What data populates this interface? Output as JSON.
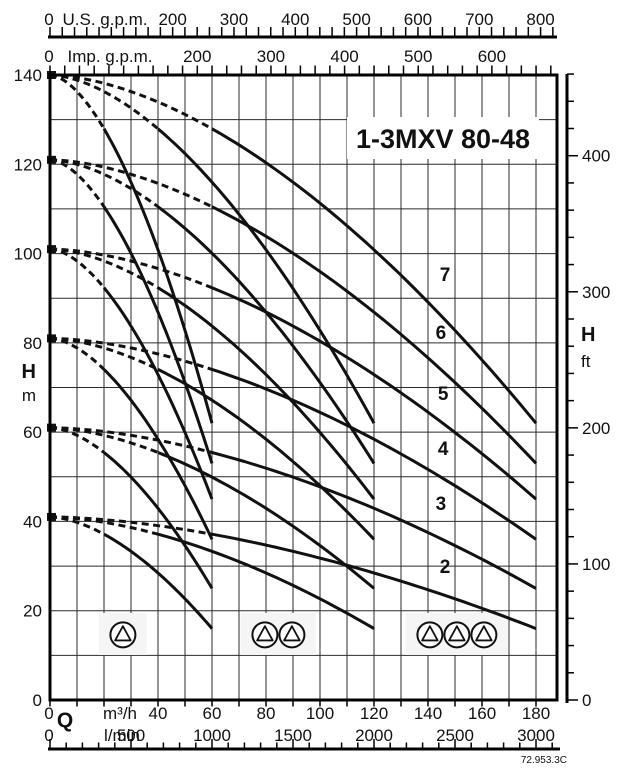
{
  "title": "1-3MXV 80-48",
  "drawing_code": "72.953.3C",
  "axes": {
    "us_gpm": {
      "zero": "0",
      "name": "U.S. g.p.m.",
      "labels": [
        200,
        300,
        400,
        500,
        600,
        700,
        800
      ],
      "minor_step_gpm": 20,
      "max_gpm": 820
    },
    "imp_gpm": {
      "zero": "0",
      "name": "Imp. g.p.m.",
      "labels": [
        200,
        300,
        400,
        500,
        600
      ],
      "minor_step_gpm": 20,
      "max_gpm": 680
    },
    "head_left": {
      "symbol": "H",
      "unit": "m",
      "labels": [
        140,
        120,
        100,
        80,
        60,
        40,
        20,
        0
      ],
      "grid_step_m": 10
    },
    "head_right": {
      "symbol": "H",
      "unit": "ft",
      "labels": [
        400,
        300,
        200,
        100,
        0
      ],
      "minor_step_ft": 20,
      "max_ft": 460
    },
    "flow_m3h": {
      "zero": "0",
      "symbol": "Q",
      "unit": "m³/h",
      "labels": [
        40,
        60,
        80,
        100,
        120,
        140,
        160,
        180
      ],
      "tick_step_m3h": 10
    },
    "flow_lmin": {
      "zero": "0",
      "unit": "l/min",
      "labels": [
        500,
        1000,
        1500,
        2000,
        2500,
        3000
      ],
      "minor_step_lmin": 100,
      "max_lmin": 3100
    }
  },
  "chart_data": {
    "type": "line",
    "title": "1-3MXV 80-48",
    "xlabel": "Q m³/h",
    "ylabel": "H m",
    "x_range_m3h": [
      0,
      187
    ],
    "y_range_m": [
      0,
      140
    ],
    "grid": "on",
    "curve_families": [
      {
        "label": "7",
        "shutoff_head_m": 140,
        "head_at_full_flow_m": 62,
        "label_q_h": [
          146.3,
          95.2
        ]
      },
      {
        "label": "6",
        "shutoff_head_m": 121,
        "head_at_full_flow_m": 53,
        "label_q_h": [
          144.8,
          82.2
        ]
      },
      {
        "label": "5",
        "shutoff_head_m": 101,
        "head_at_full_flow_m": 45,
        "label_q_h": [
          145.6,
          68.5
        ]
      },
      {
        "label": "4",
        "shutoff_head_m": 81,
        "head_at_full_flow_m": 36,
        "label_q_h": [
          145.6,
          56.2
        ]
      },
      {
        "label": "3",
        "shutoff_head_m": 61,
        "head_at_full_flow_m": 25,
        "label_q_h": [
          144.8,
          43.9
        ]
      },
      {
        "label": "2",
        "shutoff_head_m": 41,
        "head_at_full_flow_m": 16,
        "label_q_h": [
          146.3,
          29.8
        ]
      }
    ],
    "parallel_pump_counts": [
      1,
      2,
      3
    ],
    "single_pump_max_flow_m3h": 60,
    "dashed_below_flow_per_pump_m3h": 20,
    "curve_exponent": 1.7,
    "line_styles": {
      "below_min_flow": "dashed",
      "operating_range": "solid"
    }
  },
  "pump_icon_groups": [
    {
      "pumps": 1,
      "centers_q_m3h": [
        27.0
      ],
      "center_h_m": 14.6
    },
    {
      "pumps": 2,
      "centers_q_m3h": [
        79.6,
        89.6
      ],
      "center_h_m": 14.6
    },
    {
      "pumps": 3,
      "centers_q_m3h": [
        140.7,
        150.7,
        160.7
      ],
      "center_h_m": 14.6
    }
  ],
  "colors": {
    "ink": "#111111",
    "grid": "#2b2b2b",
    "frame": "#000000",
    "background": "#ffffff",
    "icon_patch": "#f5f5f5"
  }
}
